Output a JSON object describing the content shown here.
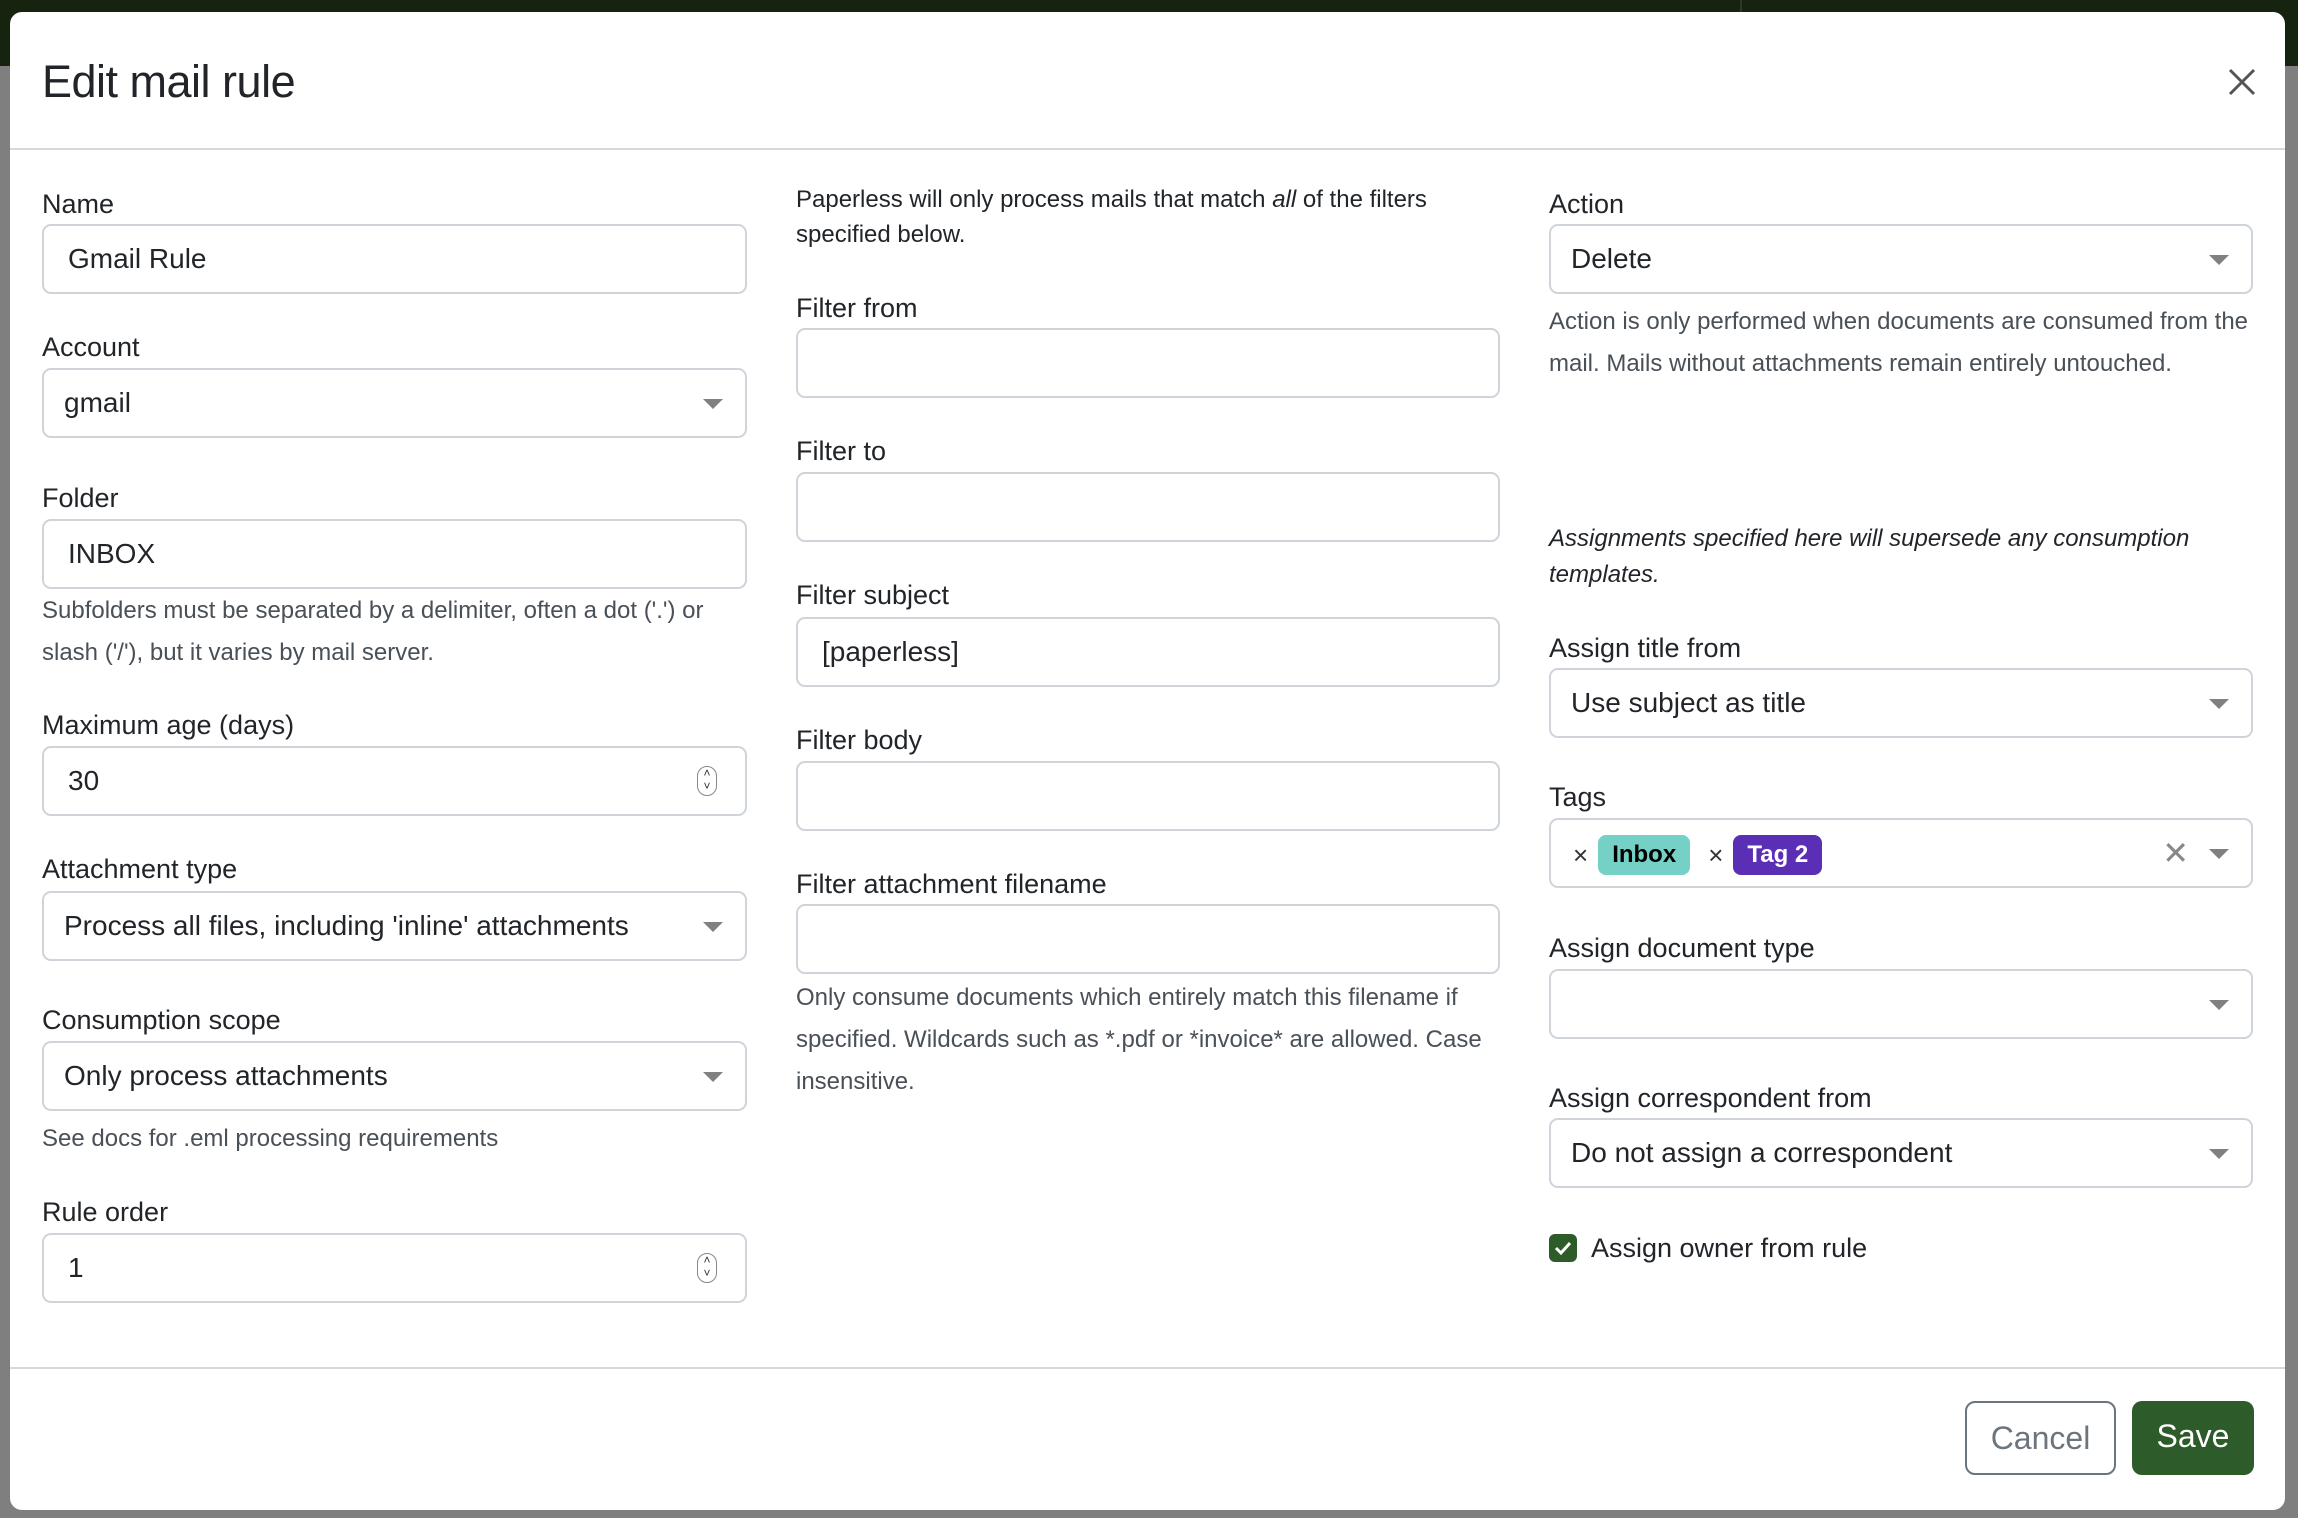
{
  "modal": {
    "title": "Edit mail rule",
    "close_icon": "close-icon"
  },
  "left": {
    "name": {
      "label": "Name",
      "value": "Gmail Rule"
    },
    "account": {
      "label": "Account",
      "value": "gmail"
    },
    "folder": {
      "label": "Folder",
      "value": "INBOX",
      "help": "Subfolders must be separated by a delimiter, often a dot ('.') or slash ('/'), but it varies by mail server."
    },
    "max_age": {
      "label": "Maximum age (days)",
      "value": "30"
    },
    "attachment_type": {
      "label": "Attachment type",
      "value": "Process all files, including 'inline' attachments"
    },
    "consumption_scope": {
      "label": "Consumption scope",
      "value": "Only process attachments",
      "help": "See docs for .eml processing requirements"
    },
    "rule_order": {
      "label": "Rule order",
      "value": "1"
    }
  },
  "middle": {
    "intro_a": "Paperless will only process mails that match ",
    "intro_em": "all",
    "intro_b": " of the filters specified below.",
    "filter_from": {
      "label": "Filter from",
      "value": ""
    },
    "filter_to": {
      "label": "Filter to",
      "value": ""
    },
    "filter_subject": {
      "label": "Filter subject",
      "value": "[paperless]"
    },
    "filter_body": {
      "label": "Filter body",
      "value": ""
    },
    "filter_attachment": {
      "label": "Filter attachment filename",
      "value": "",
      "help": "Only consume documents which entirely match this filename if specified. Wildcards such as *.pdf or *invoice* are allowed. Case insensitive."
    }
  },
  "right": {
    "action": {
      "label": "Action",
      "value": "Delete",
      "help": "Action is only performed when documents are consumed from the mail. Mails without attachments remain entirely untouched."
    },
    "assignments_note": "Assignments specified here will supersede any consumption templates.",
    "assign_title": {
      "label": "Assign title from",
      "value": "Use subject as title"
    },
    "tags": {
      "label": "Tags",
      "items": [
        {
          "name": "Inbox",
          "color": "#75d0c6",
          "text_color": "#000000"
        },
        {
          "name": "Tag 2",
          "color": "#5a2fb5",
          "text_color": "#ffffff"
        }
      ]
    },
    "document_type": {
      "label": "Assign document type",
      "value": ""
    },
    "correspondent": {
      "label": "Assign correspondent from",
      "value": "Do not assign a correspondent"
    },
    "owner": {
      "label": "Assign owner from rule",
      "checked": true
    }
  },
  "footer": {
    "cancel": "Cancel",
    "save": "Save"
  },
  "colors": {
    "primary": "#2d5b2a",
    "header": "#16240f"
  }
}
